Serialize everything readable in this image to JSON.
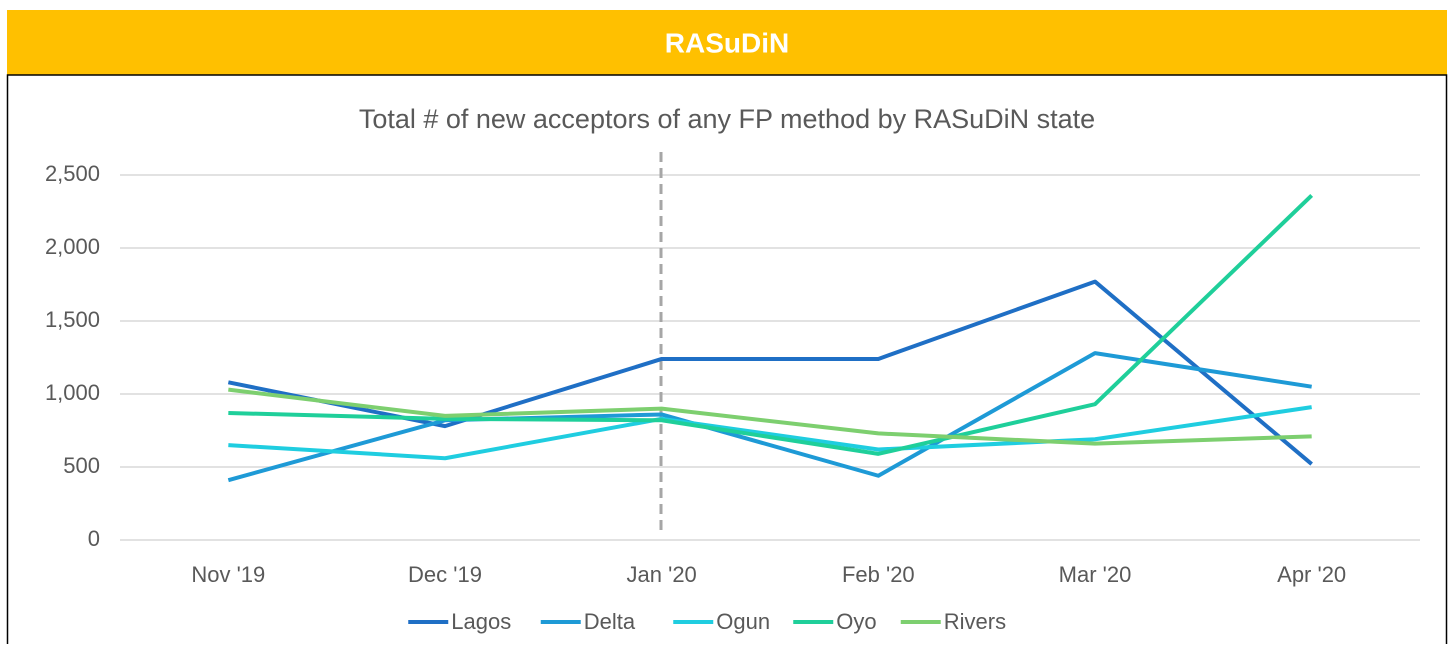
{
  "header": {
    "title": "RASuDiN"
  },
  "chart_data": {
    "type": "line",
    "title": "Total # of new acceptors of any FP method by RASuDiN state",
    "categories": [
      "Nov '19",
      "Dec '19",
      "Jan '20",
      "Feb '20",
      "Mar '20",
      "Apr '20"
    ],
    "series": [
      {
        "name": "Lagos",
        "color": "#1f6fc5",
        "values": [
          1080,
          780,
          1240,
          1240,
          1770,
          520
        ]
      },
      {
        "name": "Delta",
        "color": "#1e9ad6",
        "values": [
          410,
          820,
          860,
          440,
          1280,
          1050
        ]
      },
      {
        "name": "Ogun",
        "color": "#1fcde0",
        "values": [
          650,
          560,
          830,
          620,
          690,
          910
        ]
      },
      {
        "name": "Oyo",
        "color": "#1fcf9a",
        "values": [
          870,
          830,
          820,
          590,
          930,
          2360
        ]
      },
      {
        "name": "Rivers",
        "color": "#7dcf6f",
        "values": [
          1030,
          850,
          900,
          730,
          660,
          710
        ]
      }
    ],
    "ylim": [
      0,
      2500
    ],
    "yticks": [
      0,
      500,
      {
        "value": 1000,
        "label": "1,000"
      },
      {
        "value": 1500,
        "label": "1,500"
      },
      {
        "value": 2000,
        "label": "2,000"
      },
      {
        "value": 2500,
        "label": "2,500"
      }
    ],
    "grid": true,
    "legend": "bottom"
  }
}
